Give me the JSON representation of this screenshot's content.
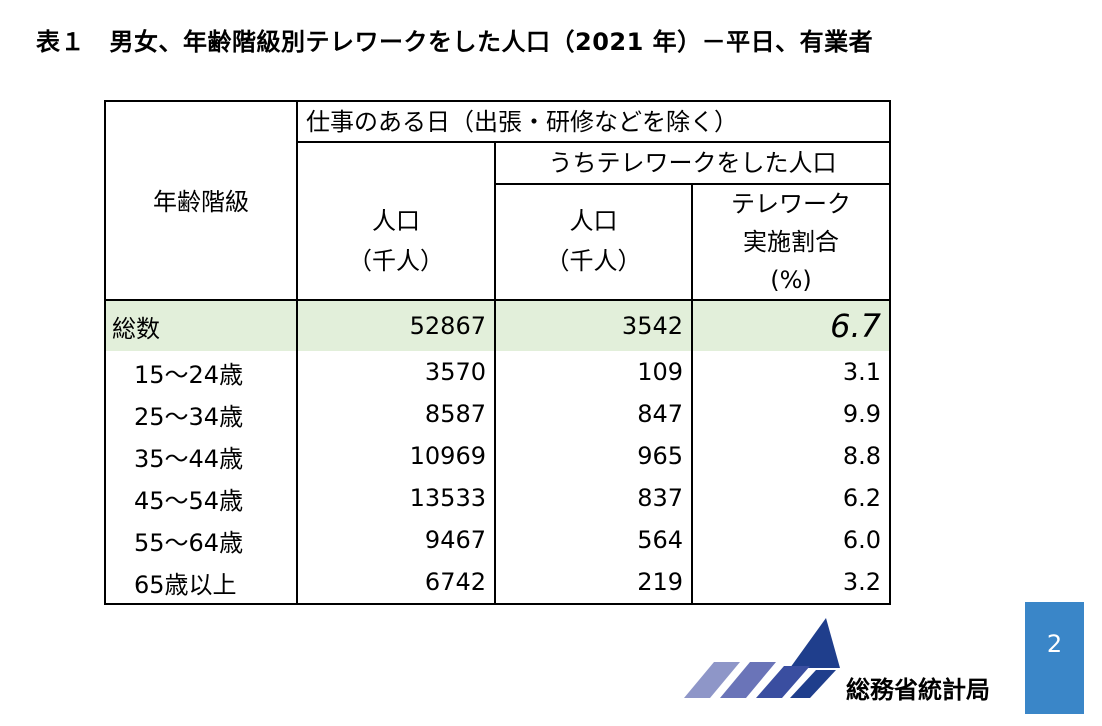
{
  "title": "表１　男女、年齢階級別テレワークをした人口（2021 年）－平日、有業者",
  "table": {
    "header": {
      "age_group": "年齢階級",
      "workday": "仕事のある日（出張・研修などを除く）",
      "telework_group": "うちテレワークをした人口",
      "population": [
        "人口",
        "（千人）"
      ],
      "telework_population": [
        "人口",
        "（千人）"
      ],
      "rate": [
        "テレワーク",
        "実施割合",
        "(%)"
      ]
    },
    "rows": [
      [
        "総数",
        "52867",
        "3542",
        "6.7"
      ],
      [
        "15～24歳",
        "3570",
        "109",
        "3.1"
      ],
      [
        "25～34歳",
        "8587",
        "847",
        "9.9"
      ],
      [
        "35～44歳",
        "10969",
        "965",
        "8.8"
      ],
      [
        "45～54歳",
        "13533",
        "837",
        "6.2"
      ],
      [
        "55～64歳",
        "9467",
        "564",
        "6.0"
      ],
      [
        "65歳以上",
        "6742",
        "219",
        "3.2"
      ]
    ]
  },
  "page_number": "2",
  "logo_text": "総務省統計局"
}
